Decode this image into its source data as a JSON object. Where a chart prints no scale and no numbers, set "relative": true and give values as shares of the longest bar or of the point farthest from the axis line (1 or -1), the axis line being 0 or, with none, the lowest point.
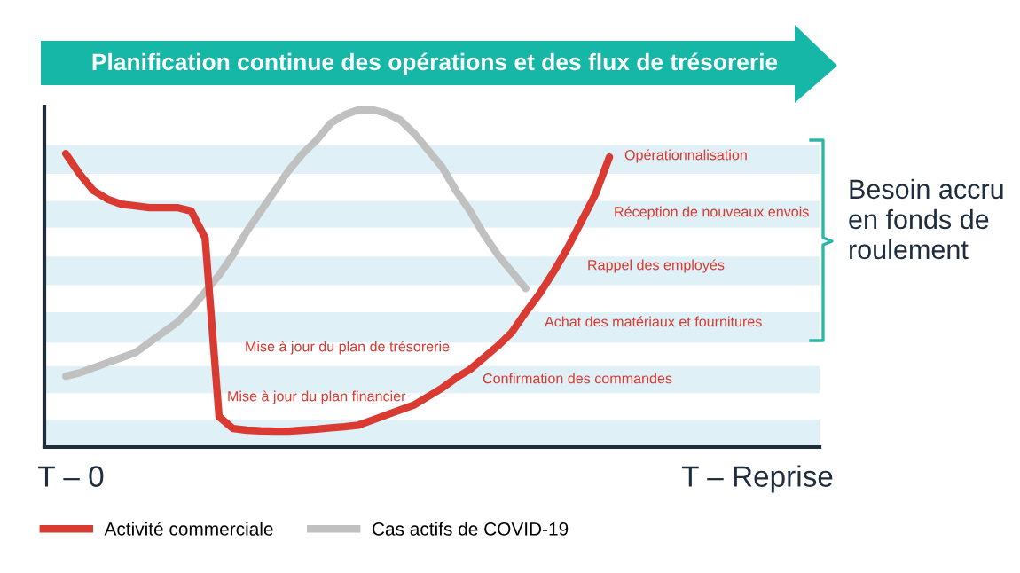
{
  "chart_data": {
    "type": "line",
    "relative": true,
    "title": "Planification continue des opérations et des flux de trésorerie",
    "categories": [
      null,
      null,
      null,
      null,
      null,
      null,
      null,
      null,
      null,
      null,
      null,
      null,
      null,
      null,
      null,
      null,
      null,
      null,
      null,
      null,
      null,
      null,
      null,
      null,
      null,
      null,
      null,
      null,
      null,
      null,
      null,
      null,
      null,
      null,
      null,
      null,
      null,
      null,
      null,
      null,
      null,
      null,
      null,
      null,
      null,
      null,
      null,
      null,
      null,
      null,
      null,
      null,
      null
    ],
    "series": [
      {
        "name": "Activité commerciale",
        "color": "#d93a32",
        "values": [
          0.87,
          0.81,
          0.76,
          0.735,
          0.72,
          0.715,
          0.71,
          0.71,
          0.71,
          0.7,
          0.62,
          0.09,
          0.055,
          0.05,
          0.048,
          0.047,
          0.047,
          0.05,
          0.053,
          0.057,
          0.06,
          0.065,
          0.08,
          0.095,
          0.11,
          0.125,
          0.15,
          0.175,
          0.205,
          0.23,
          0.265,
          0.3,
          0.34,
          0.4,
          0.455,
          0.52,
          0.59,
          0.67,
          0.75,
          0.86,
          null,
          null,
          null,
          null,
          null,
          null,
          null,
          null,
          null,
          null,
          null,
          null,
          null
        ]
      },
      {
        "name": "Cas actifs de COVID-19",
        "color": "#c0c0c0",
        "values": [
          0.21,
          0.22,
          0.235,
          0.25,
          0.265,
          0.28,
          0.31,
          0.34,
          0.37,
          0.41,
          0.46,
          0.51,
          0.57,
          0.64,
          0.7,
          0.76,
          0.82,
          0.87,
          0.91,
          0.96,
          0.985,
          1.0,
          1.0,
          0.99,
          0.97,
          0.93,
          0.88,
          0.83,
          0.76,
          0.7,
          0.63,
          0.57,
          0.52,
          0.47,
          null,
          null,
          null,
          null,
          null,
          null,
          null,
          null,
          null,
          null,
          null,
          null,
          null,
          null,
          null,
          null,
          null,
          null,
          null
        ]
      }
    ],
    "bands": [
      {
        "axis": "y",
        "from": 0.81,
        "to": 0.895,
        "color": "#dff0f7"
      },
      {
        "axis": "y",
        "from": 0.65,
        "to": 0.73,
        "color": "#dff0f7"
      },
      {
        "axis": "y",
        "from": 0.48,
        "to": 0.565,
        "color": "#dff0f7"
      },
      {
        "axis": "y",
        "from": 0.31,
        "to": 0.4,
        "color": "#dff0f7"
      },
      {
        "axis": "y",
        "from": 0.16,
        "to": 0.24,
        "color": "#dff0f7"
      },
      {
        "axis": "y",
        "from": 0,
        "to": 0.08,
        "color": "#dff0f7"
      }
    ],
    "annotations": [
      "Opérationnalisation",
      "Réception de nouveaux envois",
      "Rappel des employés",
      "Achat des matériaux et fournitures",
      "Mise à jour du plan de trésorerie",
      "Confirmation des commandes",
      "Mise à jour du plan financier",
      "T – 0",
      "T – Reprise",
      "Besoin accru\nen fonds de\nroulement"
    ],
    "legend": "bottom left",
    "marker": "none",
    "line_style": "solid"
  }
}
